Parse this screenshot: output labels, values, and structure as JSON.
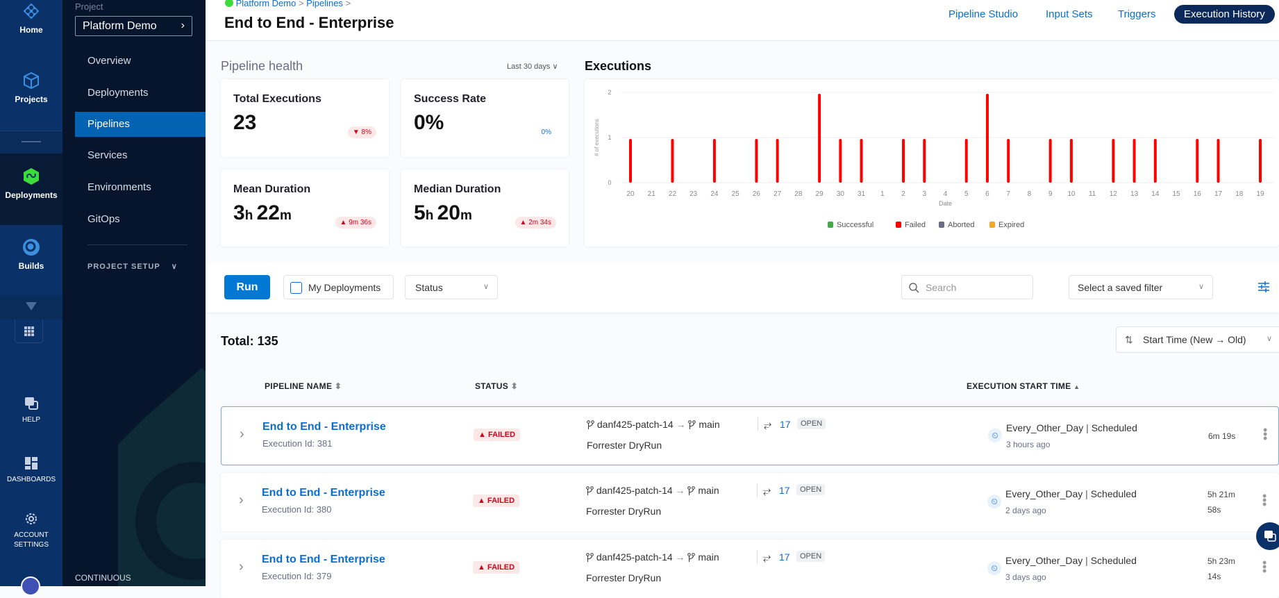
{
  "left_nav": {
    "items": [
      {
        "label": "Home",
        "icon": "home-icon"
      },
      {
        "label": "Projects",
        "icon": "cube-icon"
      },
      {
        "label": "Deployments",
        "icon": "deployments-icon"
      },
      {
        "label": "Builds",
        "icon": "builds-icon"
      },
      {
        "label": "HELP",
        "icon": "help-icon"
      },
      {
        "label": "DASHBOARDS",
        "icon": "dashboard-icon"
      },
      {
        "label": "ACCOUNT SETTINGS",
        "icon": "gear-icon"
      }
    ]
  },
  "project_nav": {
    "project_label": "Project",
    "project_name": "Platform Demo",
    "items": [
      "Overview",
      "Deployments",
      "Pipelines",
      "Services",
      "Environments",
      "GitOps"
    ],
    "active": "Pipelines",
    "section": "PROJECT SETUP",
    "footer": "CONTINUOUS"
  },
  "header": {
    "breadcrumb": [
      "Platform Demo",
      "Pipelines"
    ],
    "title": "End to End - Enterprise",
    "tabs": [
      "Pipeline Studio",
      "Input Sets",
      "Triggers",
      "Execution History"
    ],
    "active_tab": "Execution History"
  },
  "health": {
    "title": "Pipeline health",
    "range": "Last 30 days",
    "cards": [
      {
        "label": "Total Executions",
        "value": "23",
        "delta": "8%",
        "trend": "down"
      },
      {
        "label": "Success Rate",
        "value": "0%",
        "delta": "0%",
        "trend": "none"
      },
      {
        "label": "Mean Duration",
        "value_h": "3",
        "value_m": "22",
        "delta": "9m 36s",
        "trend": "up"
      },
      {
        "label": "Median Duration",
        "value_h": "5",
        "value_m": "20",
        "delta": "2m 34s",
        "trend": "up"
      }
    ]
  },
  "chart_data": {
    "type": "bar",
    "title": "Executions",
    "xlabel": "Date",
    "ylabel": "# of executions",
    "ylim": [
      0,
      2
    ],
    "yticks": [
      0,
      1,
      2
    ],
    "grid": true,
    "legend_placement": "bottom",
    "categories": [
      "20",
      "21",
      "22",
      "23",
      "24",
      "25",
      "26",
      "27",
      "28",
      "29",
      "30",
      "31",
      "1",
      "2",
      "3",
      "4",
      "5",
      "6",
      "7",
      "8",
      "9",
      "10",
      "11",
      "12",
      "13",
      "14",
      "15",
      "16",
      "17",
      "18",
      "19"
    ],
    "series": [
      {
        "name": "Successful",
        "color": "#42ab45",
        "values": [
          0,
          0,
          0,
          0,
          0,
          0,
          0,
          0,
          0,
          0,
          0,
          0,
          0,
          0,
          0,
          0,
          0,
          0,
          0,
          0,
          0,
          0,
          0,
          0,
          0,
          0,
          0,
          0,
          0,
          0,
          0
        ]
      },
      {
        "name": "Failed",
        "color": "#ff0000",
        "values": [
          1,
          0,
          1,
          0,
          1,
          0,
          1,
          1,
          0,
          2,
          1,
          1,
          0,
          1,
          1,
          0,
          1,
          2,
          1,
          0,
          1,
          1,
          0,
          1,
          1,
          1,
          0,
          1,
          1,
          0,
          1
        ]
      },
      {
        "name": "Aborted",
        "color": "#6b6d85",
        "values": [
          0,
          0,
          0,
          0,
          0,
          0,
          0,
          0,
          0,
          0,
          0,
          0,
          0,
          0,
          0,
          0,
          0,
          0,
          0,
          0,
          0,
          0,
          0,
          0,
          0,
          0,
          0,
          0,
          0,
          0,
          0
        ]
      },
      {
        "name": "Expired",
        "color": "#f5a623",
        "values": [
          0,
          0,
          0,
          0,
          0,
          0,
          0,
          0,
          0,
          0,
          0,
          0,
          0,
          0,
          0,
          0,
          0,
          0,
          0,
          0,
          0,
          0,
          0,
          0,
          0,
          0,
          0,
          0,
          0,
          0,
          0
        ]
      }
    ]
  },
  "toolbar": {
    "run": "Run",
    "my_deployments": "My Deployments",
    "status": "Status",
    "search_placeholder": "Search",
    "saved_filter": "Select a saved filter"
  },
  "list": {
    "total": "Total: 135",
    "sort": "Start Time (New → Old)",
    "columns": [
      "PIPELINE NAME",
      "STATUS",
      "EXECUTION START TIME"
    ],
    "rows": [
      {
        "name": "End to End - Enterprise",
        "id": "Execution Id: 381",
        "status": "FAILED",
        "source": "danf425-patch-14",
        "target": "main",
        "pr": "17",
        "pr_state": "OPEN",
        "sub": "Forrester DryRun",
        "trigger": "Every_Other_Day",
        "trigger_type": "Scheduled",
        "ago": "3 hours ago",
        "duration": [
          "6m 19s"
        ]
      },
      {
        "name": "End to End - Enterprise",
        "id": "Execution Id: 380",
        "status": "FAILED",
        "source": "danf425-patch-14",
        "target": "main",
        "pr": "17",
        "pr_state": "OPEN",
        "sub": "Forrester DryRun",
        "trigger": "Every_Other_Day",
        "trigger_type": "Scheduled",
        "ago": "2 days ago",
        "duration": [
          "5h 21m",
          "58s"
        ]
      },
      {
        "name": "End to End - Enterprise",
        "id": "Execution Id: 379",
        "status": "FAILED",
        "source": "danf425-patch-14",
        "target": "main",
        "pr": "17",
        "pr_state": "OPEN",
        "sub": "Forrester DryRun",
        "trigger": "Every_Other_Day",
        "trigger_type": "Scheduled",
        "ago": "3 days ago",
        "duration": [
          "5h 23m",
          "14s"
        ]
      }
    ]
  }
}
